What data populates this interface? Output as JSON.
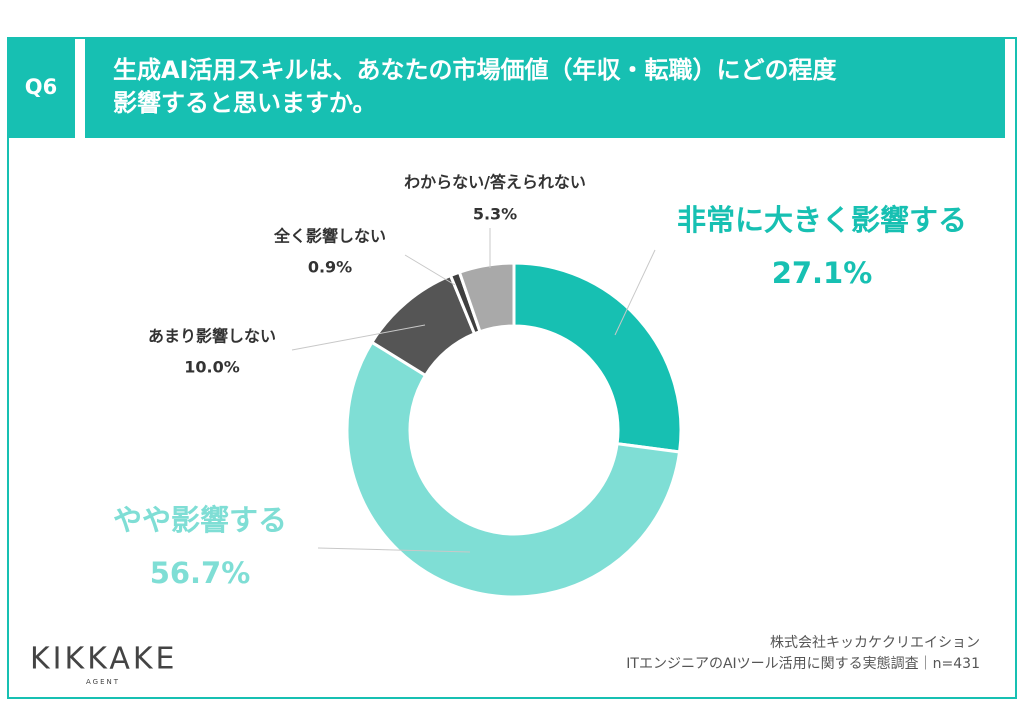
{
  "question": "Q6",
  "chart_data": {
    "type": "donut",
    "title": [
      "生成AI活用スキルは、あなたの市場価値（年収・転職）にどの程度",
      "影響すると思いますか。"
    ],
    "categories": [
      "非常に大きく影響する",
      "やや影響する",
      "あまり影響しない",
      "全く影響しない",
      "わからない/答えられない"
    ],
    "values": [
      27.1,
      56.7,
      10.0,
      0.9,
      5.3
    ],
    "value_labels": [
      "27.1%",
      "56.7%",
      "10.0%",
      "0.9%",
      "5.3%"
    ],
    "colors": [
      "#17c0b2",
      "#7fded5",
      "#555555",
      "#3f3f3f",
      "#a9a9a9"
    ]
  },
  "footer": [
    "株式会社キッカケクリエイション",
    "ITエンジニアのAIツール活用に関する実態調査｜n=431"
  ],
  "logo": {
    "name": "KIKKAKE",
    "sub": "AGENT"
  }
}
